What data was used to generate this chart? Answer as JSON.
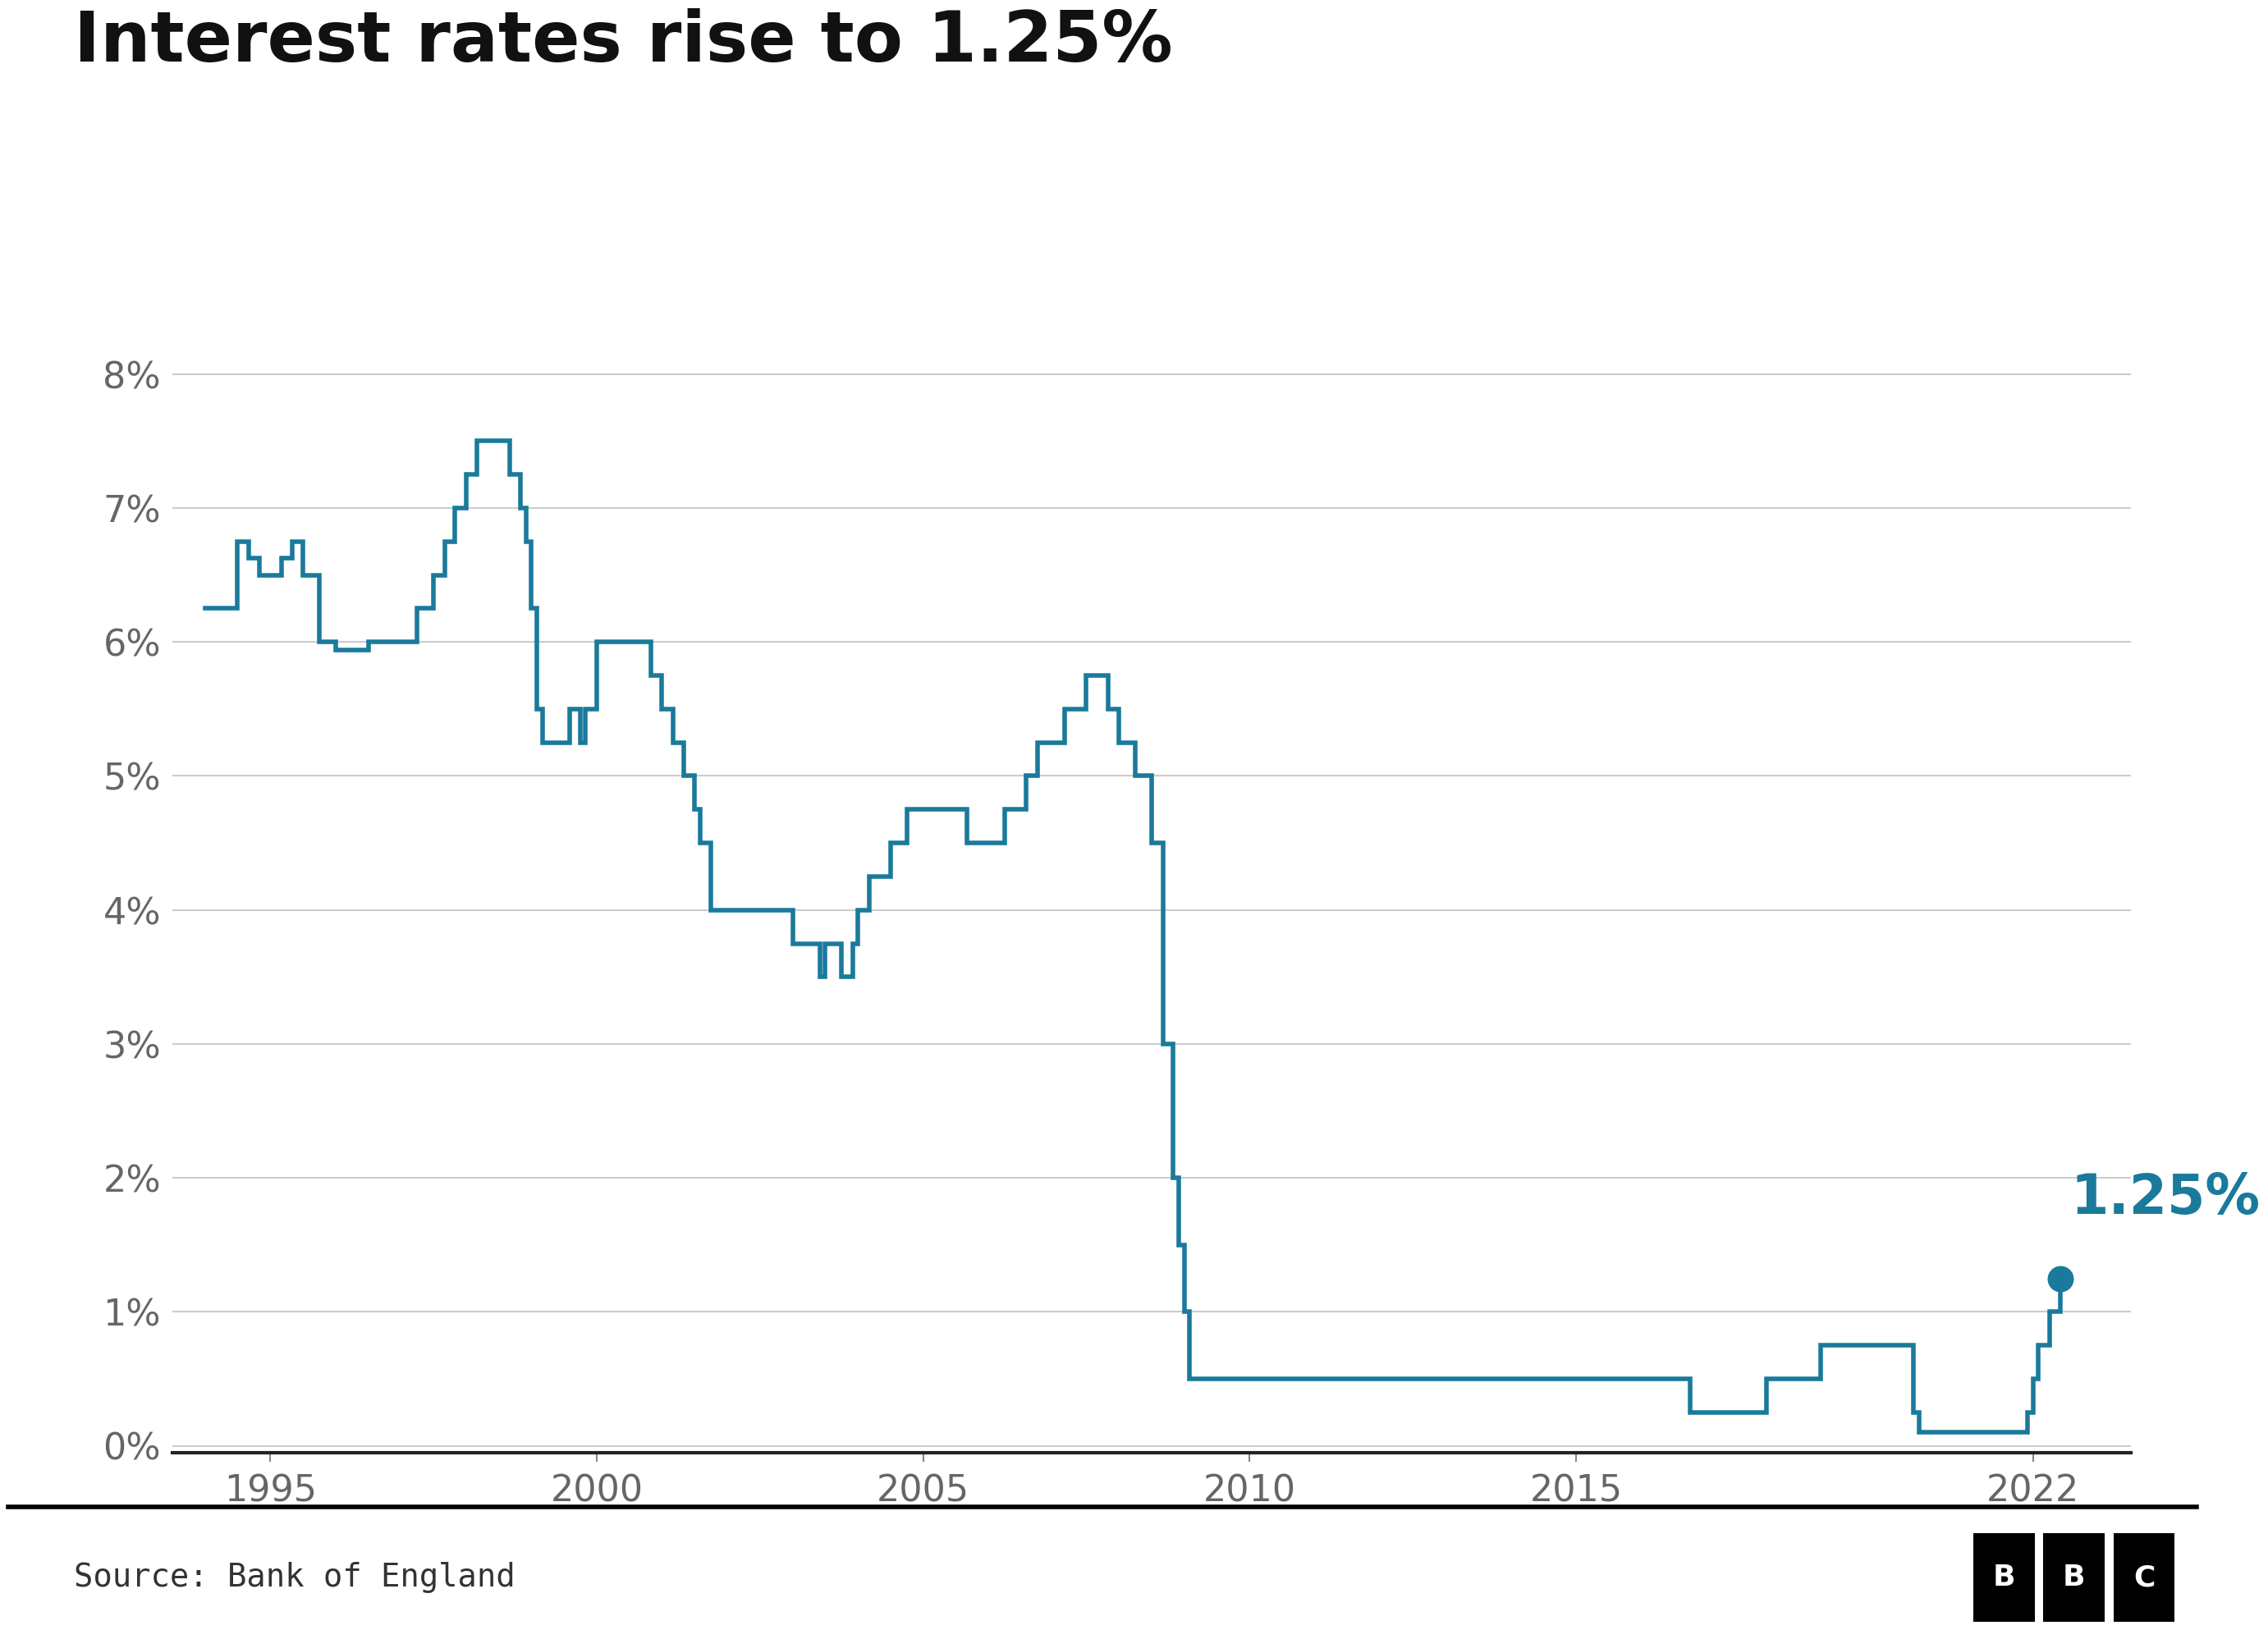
{
  "title": "Interest rates rise to 1.25%",
  "source": "Source: Bank of England",
  "line_color": "#1a7a9b",
  "background_color": "#ffffff",
  "title_fontsize": 62,
  "source_fontsize": 28,
  "tick_fontsize": 32,
  "annotation_label": "1.25%",
  "annotation_value": 1.25,
  "annotation_year": 2022.42,
  "ylim": [
    -0.05,
    8.5
  ],
  "yticks": [
    0,
    1,
    2,
    3,
    4,
    5,
    6,
    7,
    8
  ],
  "ytick_labels": [
    "0%",
    "1%",
    "2%",
    "3%",
    "4%",
    "5%",
    "6%",
    "7%",
    "8%"
  ],
  "xlim": [
    1993.5,
    2023.5
  ],
  "xticks": [
    1995,
    2000,
    2005,
    2010,
    2015,
    2022
  ],
  "data": [
    [
      1994.0,
      6.25
    ],
    [
      1994.5,
      6.75
    ],
    [
      1994.67,
      6.625
    ],
    [
      1994.83,
      6.5
    ],
    [
      1995.0,
      6.5
    ],
    [
      1995.17,
      6.625
    ],
    [
      1995.33,
      6.75
    ],
    [
      1995.5,
      6.5
    ],
    [
      1995.75,
      6.0
    ],
    [
      1996.0,
      5.94
    ],
    [
      1996.5,
      6.0
    ],
    [
      1997.0,
      6.0
    ],
    [
      1997.25,
      6.25
    ],
    [
      1997.5,
      6.5
    ],
    [
      1997.67,
      6.75
    ],
    [
      1997.83,
      7.0
    ],
    [
      1998.0,
      7.25
    ],
    [
      1998.17,
      7.5
    ],
    [
      1998.5,
      7.5
    ],
    [
      1998.67,
      7.25
    ],
    [
      1998.83,
      7.0
    ],
    [
      1998.92,
      6.75
    ],
    [
      1999.0,
      6.25
    ],
    [
      1999.08,
      5.5
    ],
    [
      1999.17,
      5.25
    ],
    [
      1999.5,
      5.25
    ],
    [
      1999.58,
      5.5
    ],
    [
      1999.75,
      5.25
    ],
    [
      1999.83,
      5.5
    ],
    [
      2000.0,
      6.0
    ],
    [
      2000.67,
      6.0
    ],
    [
      2000.83,
      5.75
    ],
    [
      2001.0,
      5.5
    ],
    [
      2001.17,
      5.25
    ],
    [
      2001.33,
      5.0
    ],
    [
      2001.5,
      4.75
    ],
    [
      2001.58,
      4.5
    ],
    [
      2001.75,
      4.0
    ],
    [
      2002.0,
      4.0
    ],
    [
      2003.0,
      3.75
    ],
    [
      2003.42,
      3.5
    ],
    [
      2003.5,
      3.75
    ],
    [
      2003.75,
      3.5
    ],
    [
      2003.92,
      3.75
    ],
    [
      2004.0,
      4.0
    ],
    [
      2004.17,
      4.25
    ],
    [
      2004.5,
      4.5
    ],
    [
      2004.75,
      4.75
    ],
    [
      2005.0,
      4.75
    ],
    [
      2005.67,
      4.5
    ],
    [
      2006.0,
      4.5
    ],
    [
      2006.25,
      4.75
    ],
    [
      2006.58,
      5.0
    ],
    [
      2006.75,
      5.25
    ],
    [
      2007.0,
      5.25
    ],
    [
      2007.17,
      5.5
    ],
    [
      2007.5,
      5.75
    ],
    [
      2007.67,
      5.75
    ],
    [
      2007.83,
      5.5
    ],
    [
      2008.0,
      5.25
    ],
    [
      2008.25,
      5.0
    ],
    [
      2008.5,
      4.5
    ],
    [
      2008.67,
      3.0
    ],
    [
      2008.83,
      2.0
    ],
    [
      2008.92,
      1.5
    ],
    [
      2009.0,
      1.0
    ],
    [
      2009.08,
      0.5
    ],
    [
      2016.67,
      0.5
    ],
    [
      2016.75,
      0.25
    ],
    [
      2017.83,
      0.25
    ],
    [
      2017.92,
      0.5
    ],
    [
      2018.67,
      0.5
    ],
    [
      2018.75,
      0.75
    ],
    [
      2020.0,
      0.75
    ],
    [
      2020.17,
      0.25
    ],
    [
      2020.25,
      0.1
    ],
    [
      2021.83,
      0.1
    ],
    [
      2021.92,
      0.25
    ],
    [
      2022.0,
      0.5
    ],
    [
      2022.08,
      0.75
    ],
    [
      2022.25,
      1.0
    ],
    [
      2022.42,
      1.25
    ]
  ]
}
